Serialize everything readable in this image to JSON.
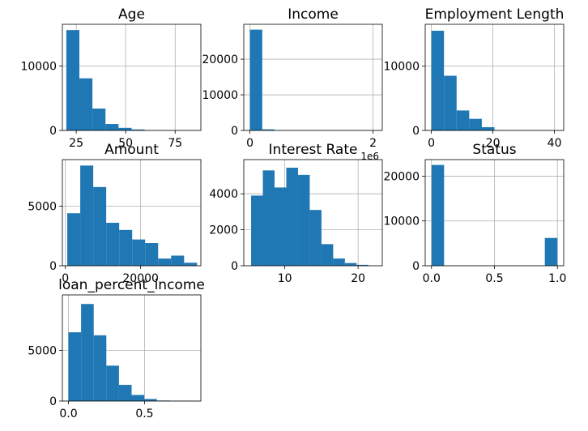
{
  "figure": {
    "background": "#ffffff",
    "bar_color": "#1f77b4",
    "grid_color": "#b0b0b0"
  },
  "chart_data": [
    {
      "type": "bar",
      "title": "Age",
      "xlim": [
        18,
        88
      ],
      "ylim": [
        0,
        16500
      ],
      "xticks": [
        25,
        50,
        75
      ],
      "xtick_labels": [
        "25",
        "50",
        "75"
      ],
      "yticks": [
        0,
        10000
      ],
      "ytick_labels": [
        "0",
        "10000"
      ],
      "grid": true,
      "bins": [
        [
          20,
          26.6
        ],
        [
          26.6,
          33.2
        ],
        [
          33.2,
          39.8
        ],
        [
          39.8,
          46.4
        ],
        [
          46.4,
          53.0
        ],
        [
          53.0,
          59.6
        ],
        [
          59.6,
          66.2
        ],
        [
          66.2,
          72.8
        ],
        [
          72.8,
          79.4
        ],
        [
          79.4,
          86
        ]
      ],
      "values": [
        15600,
        8100,
        3400,
        1000,
        400,
        150,
        40,
        15,
        8,
        5
      ]
    },
    {
      "type": "bar",
      "title": "Income",
      "xlim": [
        -0.1,
        2.15
      ],
      "ylim": [
        0,
        29800
      ],
      "xticks": [
        0,
        2
      ],
      "xtick_labels": [
        "0",
        "2"
      ],
      "yticks": [
        0,
        10000,
        20000
      ],
      "ytick_labels": [
        "0",
        "10000",
        "20000"
      ],
      "offset_text": "1e6",
      "grid": true,
      "bins": [
        [
          0,
          0.2
        ],
        [
          0.2,
          0.4
        ],
        [
          0.4,
          0.6
        ],
        [
          0.6,
          0.8
        ],
        [
          0.8,
          1.0
        ],
        [
          1.0,
          1.2
        ],
        [
          1.2,
          1.4
        ],
        [
          1.4,
          1.6
        ],
        [
          1.6,
          1.8
        ],
        [
          1.8,
          2.0
        ]
      ],
      "values": [
        28300,
        300,
        30,
        10,
        5,
        3,
        2,
        1,
        1,
        1
      ]
    },
    {
      "type": "bar",
      "title": "Employment Length",
      "xlim": [
        -2,
        43
      ],
      "ylim": [
        0,
        16500
      ],
      "xticks": [
        0,
        20,
        40
      ],
      "xtick_labels": [
        "0",
        "20",
        "40"
      ],
      "yticks": [
        0,
        10000
      ],
      "ytick_labels": [
        "0",
        "10000"
      ],
      "grid": true,
      "bins": [
        [
          0,
          4.1
        ],
        [
          4.1,
          8.2
        ],
        [
          8.2,
          12.3
        ],
        [
          12.3,
          16.4
        ],
        [
          16.4,
          20.5
        ],
        [
          20.5,
          24.6
        ],
        [
          24.6,
          28.7
        ],
        [
          28.7,
          32.8
        ],
        [
          32.8,
          36.9
        ],
        [
          36.9,
          41
        ]
      ],
      "values": [
        15500,
        8500,
        3100,
        1800,
        500,
        60,
        20,
        8,
        4,
        2
      ]
    },
    {
      "type": "bar",
      "title": "Amount",
      "xlim": [
        -800,
        36000
      ],
      "ylim": [
        0,
        8900
      ],
      "xticks": [
        0,
        20000
      ],
      "xtick_labels": [
        "0",
        "20000"
      ],
      "yticks": [
        0,
        5000
      ],
      "ytick_labels": [
        "0",
        "5000"
      ],
      "grid": true,
      "bins": [
        [
          500,
          3950
        ],
        [
          3950,
          7400
        ],
        [
          7400,
          10850
        ],
        [
          10850,
          14300
        ],
        [
          14300,
          17750
        ],
        [
          17750,
          21200
        ],
        [
          21200,
          24650
        ],
        [
          24650,
          28100
        ],
        [
          28100,
          31550
        ],
        [
          31550,
          35000
        ]
      ],
      "values": [
        4400,
        8400,
        6600,
        3600,
        3000,
        2200,
        1900,
        600,
        850,
        250
      ]
    },
    {
      "type": "bar",
      "title": "Interest Rate",
      "xlim": [
        4.4,
        23.3
      ],
      "ylim": [
        0,
        5900
      ],
      "xticks": [
        10,
        20
      ],
      "xtick_labels": [
        "10",
        "20"
      ],
      "yticks": [
        0,
        2000,
        4000
      ],
      "ytick_labels": [
        "0",
        "2000",
        "4000"
      ],
      "grid": true,
      "bins": [
        [
          5.4,
          7.0
        ],
        [
          7.0,
          8.6
        ],
        [
          8.6,
          10.2
        ],
        [
          10.2,
          11.8
        ],
        [
          11.8,
          13.4
        ],
        [
          13.4,
          15.0
        ],
        [
          15.0,
          16.6
        ],
        [
          16.6,
          18.2
        ],
        [
          18.2,
          19.8
        ],
        [
          19.8,
          21.4
        ]
      ],
      "values": [
        3900,
        5300,
        4350,
        5450,
        5050,
        3100,
        1200,
        400,
        150,
        50
      ]
    },
    {
      "type": "bar",
      "title": "Status",
      "xlim": [
        -0.05,
        1.05
      ],
      "ylim": [
        0,
        23700
      ],
      "xticks": [
        0,
        0.5,
        1
      ],
      "xtick_labels": [
        "0.0",
        "0.5",
        "1.0"
      ],
      "yticks": [
        0,
        10000,
        20000
      ],
      "ytick_labels": [
        "0",
        "10000",
        "20000"
      ],
      "grid": true,
      "bins": [
        [
          0,
          0.1
        ],
        [
          0.1,
          0.2
        ],
        [
          0.2,
          0.3
        ],
        [
          0.3,
          0.4
        ],
        [
          0.4,
          0.5
        ],
        [
          0.5,
          0.6
        ],
        [
          0.6,
          0.7
        ],
        [
          0.7,
          0.8
        ],
        [
          0.8,
          0.9
        ],
        [
          0.9,
          1.0
        ]
      ],
      "values": [
        22500,
        0,
        0,
        0,
        0,
        0,
        0,
        0,
        0,
        6200
      ]
    },
    {
      "type": "bar",
      "title": "loan_percent_income",
      "xlim": [
        -0.04,
        0.87
      ],
      "ylim": [
        0,
        10500
      ],
      "xticks": [
        0,
        0.5
      ],
      "xtick_labels": [
        "0.0",
        "0.5"
      ],
      "yticks": [
        0,
        5000
      ],
      "ytick_labels": [
        "0",
        "5000"
      ],
      "grid": true,
      "bins": [
        [
          0,
          0.083
        ],
        [
          0.083,
          0.166
        ],
        [
          0.166,
          0.249
        ],
        [
          0.249,
          0.332
        ],
        [
          0.332,
          0.415
        ],
        [
          0.415,
          0.498
        ],
        [
          0.498,
          0.581
        ],
        [
          0.581,
          0.664
        ],
        [
          0.664,
          0.747
        ],
        [
          0.747,
          0.83
        ]
      ],
      "values": [
        6800,
        9600,
        6500,
        3500,
        1600,
        600,
        200,
        50,
        15,
        5
      ]
    }
  ]
}
